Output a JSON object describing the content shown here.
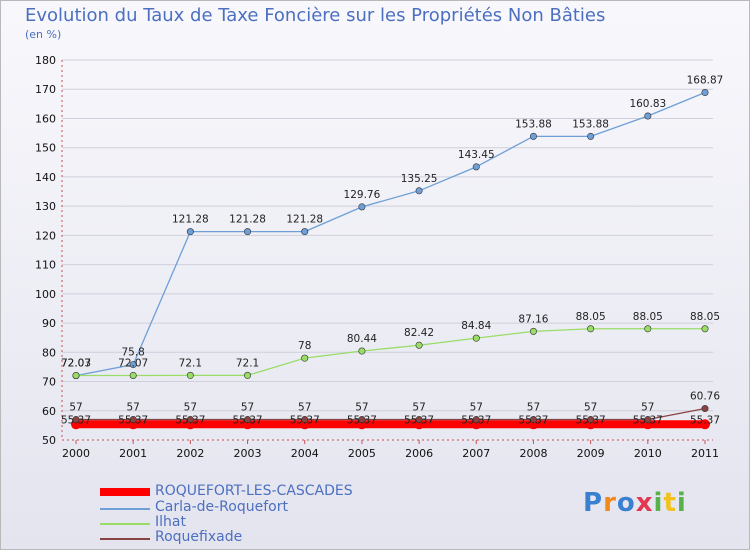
{
  "title": "Evolution du Taux de Taxe Foncière sur les Propriétés Non Bâties",
  "subtitle": "(en %)",
  "logo": "Proxiti",
  "chart_data": {
    "type": "line",
    "title": "Evolution du Taux de Taxe Foncière sur les Propriétés Non Bâties",
    "ylabel": "(en %)",
    "ylim": [
      50,
      180
    ],
    "yticks": [
      50,
      60,
      70,
      80,
      90,
      100,
      110,
      120,
      130,
      140,
      150,
      160,
      170,
      180
    ],
    "x": [
      "2000",
      "2001",
      "2002",
      "2003",
      "2004",
      "2005",
      "2006",
      "2007",
      "2008",
      "2009",
      "2010",
      "2011"
    ],
    "series": [
      {
        "name": "ROQUEFORT-LES-CASCADES",
        "color": "#ff0000",
        "values": [
          55.37,
          55.37,
          55.37,
          55.37,
          55.37,
          55.37,
          55.37,
          55.37,
          55.37,
          55.37,
          55.37,
          55.37
        ],
        "labels": [
          "55.37",
          "55.37",
          "55.37",
          "55.37",
          "55.37",
          "55.37",
          "55.37",
          "55.37",
          "55.37",
          "55.37",
          "55.37",
          "55.37"
        ]
      },
      {
        "name": "Carla-de-Roquefort",
        "color": "#6e9fd6",
        "values": [
          72.03,
          75.8,
          121.28,
          121.28,
          121.28,
          129.76,
          135.25,
          143.45,
          153.88,
          153.88,
          160.83,
          168.87
        ],
        "labels": [
          "72.03",
          "75.8",
          "121.28",
          "121.28",
          "121.28",
          "129.76",
          "135.25",
          "143.45",
          "153.88",
          "153.88",
          "160.83",
          "168.87"
        ]
      },
      {
        "name": "Ilhat",
        "color": "#99dd66",
        "values": [
          72.07,
          72.07,
          72.1,
          72.1,
          78,
          80.44,
          82.42,
          84.84,
          87.16,
          88.05,
          88.05,
          88.05
        ],
        "labels": [
          "72.07",
          "72.07",
          "72.1",
          "72.1",
          "78",
          "80.44",
          "82.42",
          "84.84",
          "87.16",
          "88.05",
          "88.05",
          "88.05"
        ]
      },
      {
        "name": "Roquefixade",
        "color": "#884444",
        "values": [
          57,
          57,
          57,
          57,
          57,
          57,
          57,
          57,
          57,
          57,
          57,
          60.76
        ],
        "labels": [
          "57",
          "57",
          "57",
          "57",
          "57",
          "57",
          "57",
          "57",
          "57",
          "57",
          "57",
          "60.76"
        ]
      }
    ]
  }
}
